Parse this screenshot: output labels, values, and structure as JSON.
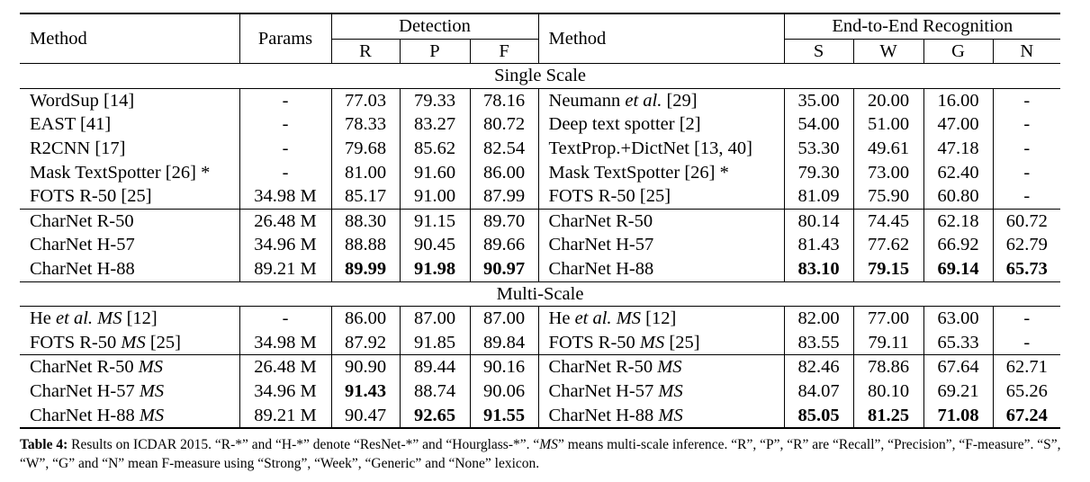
{
  "headers": {
    "method": "Method",
    "params": "Params",
    "detection": "Detection",
    "r": "R",
    "p": "P",
    "f": "F",
    "method2": "Method",
    "e2e": "End-to-End Recognition",
    "s": "S",
    "w": "W",
    "g": "G",
    "n": "N"
  },
  "sections": {
    "single": "Single Scale",
    "multi": "Multi-Scale"
  },
  "rows": [
    {
      "m1": "WordSup [14]",
      "params": "-",
      "r": "77.03",
      "p": "79.33",
      "f": "78.16",
      "m2a": "Neumann ",
      "m2b": "et al.",
      "m2c": " [29]",
      "s": "35.00",
      "w": "20.00",
      "g": "16.00",
      "n": "-"
    },
    {
      "m1": "EAST [41]",
      "params": "-",
      "r": "78.33",
      "p": "83.27",
      "f": "80.72",
      "m2": "Deep text spotter [2]",
      "s": "54.00",
      "w": "51.00",
      "g": "47.00",
      "n": "-"
    },
    {
      "m1": "R2CNN [17]",
      "params": "-",
      "r": "79.68",
      "p": "85.62",
      "f": "82.54",
      "m2": "TextProp.+DictNet [13, 40]",
      "s": "53.30",
      "w": "49.61",
      "g": "47.18",
      "n": "-"
    },
    {
      "m1": "Mask TextSpotter [26] *",
      "params": "-",
      "r": "81.00",
      "p": "91.60",
      "f": "86.00",
      "m2": "Mask TextSpotter [26] *",
      "s": "79.30",
      "w": "73.00",
      "g": "62.40",
      "n": "-"
    },
    {
      "m1": "FOTS R-50 [25]",
      "params": "34.98 M",
      "r": "85.17",
      "p": "91.00",
      "f": "87.99",
      "m2": "FOTS R-50 [25]",
      "s": "81.09",
      "w": "75.90",
      "g": "60.80",
      "n": "-"
    },
    {
      "m1": "CharNet R-50",
      "params": "26.48 M",
      "r": "88.30",
      "p": "91.15",
      "f": "89.70",
      "m2": "CharNet R-50",
      "s": "80.14",
      "w": "74.45",
      "g": "62.18",
      "n": "60.72"
    },
    {
      "m1": "CharNet H-57",
      "params": "34.96 M",
      "r": "88.88",
      "p": "90.45",
      "f": "89.66",
      "m2": "CharNet H-57",
      "s": "81.43",
      "w": "77.62",
      "g": "66.92",
      "n": "62.79"
    },
    {
      "m1": "CharNet H-88",
      "params": "89.21 M",
      "r": "89.99",
      "p": "91.98",
      "f": "90.97",
      "m2": "CharNet H-88",
      "s": "83.10",
      "w": "79.15",
      "g": "69.14",
      "n": "65.73"
    },
    {
      "m1a": "He ",
      "m1b": "et al.",
      "m1c": " ",
      "m1d": "MS",
      "m1e": " [12]",
      "params": "-",
      "r": "86.00",
      "p": "87.00",
      "f": "87.00",
      "m2a": "He ",
      "m2b": "et al.",
      "m2c": " ",
      "m2d": "MS",
      "m2e": " [12]",
      "s": "82.00",
      "w": "77.00",
      "g": "63.00",
      "n": "-"
    },
    {
      "m1a": "FOTS R-50 ",
      "m1b": "MS",
      "m1c": " [25]",
      "params": "34.98 M",
      "r": "87.92",
      "p": "91.85",
      "f": "89.84",
      "m2a": "FOTS R-50 ",
      "m2b": "MS",
      "m2c": " [25]",
      "s": "83.55",
      "w": "79.11",
      "g": "65.33",
      "n": "-"
    },
    {
      "m1a": "CharNet R-50 ",
      "m1b": "MS",
      "params": "26.48 M",
      "r": "90.90",
      "p": "89.44",
      "f": "90.16",
      "m2a": "CharNet R-50 ",
      "m2b": "MS",
      "s": "82.46",
      "w": "78.86",
      "g": "67.64",
      "n": "62.71"
    },
    {
      "m1a": "CharNet H-57 ",
      "m1b": "MS",
      "params": "34.96 M",
      "r": "91.43",
      "p": "88.74",
      "f": "90.06",
      "m2a": "CharNet H-57 ",
      "m2b": "MS",
      "s": "84.07",
      "w": "80.10",
      "g": "69.21",
      "n": "65.26"
    },
    {
      "m1a": "CharNet H-88 ",
      "m1b": "MS",
      "params": "89.21 M",
      "r": "90.47",
      "p": "92.65",
      "f": "91.55",
      "m2a": "CharNet H-88 ",
      "m2b": "MS",
      "s": "85.05",
      "w": "81.25",
      "g": "71.08",
      "n": "67.24"
    }
  ],
  "caption": {
    "label": "Table 4:",
    "p1": " Results on ICDAR 2015. “R-*” and “H-*” denote “ResNet-*” and “Hourglass-*”. “",
    "ms": "MS",
    "p2": "” means multi-scale inference. “R”, “P”, “R” are “Recall”, “Precision”, “F-measure”. “S”, “W”, “G” and “N” mean F-measure using “Strong”, “Week”, “Generic” and “None” lexicon."
  }
}
